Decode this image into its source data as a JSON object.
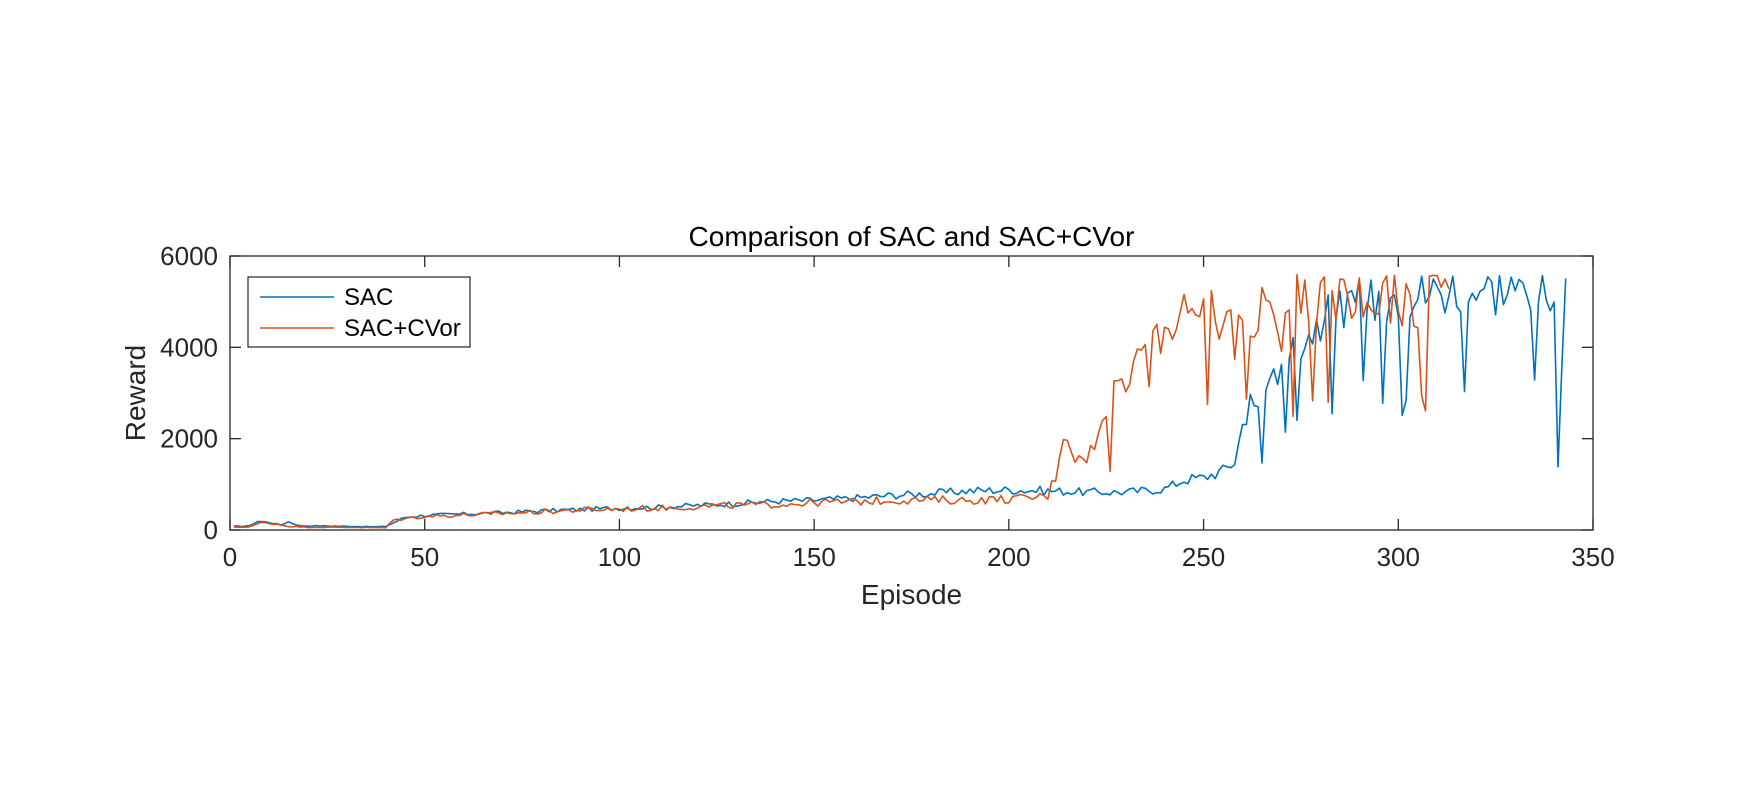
{
  "chart_data": {
    "type": "line",
    "title": "Comparison of SAC and SAC+CVor",
    "xlabel": "Episode",
    "ylabel": "Reward",
    "xlim": [
      0,
      350
    ],
    "ylim": [
      0,
      6000
    ],
    "xticks": [
      0,
      50,
      100,
      150,
      200,
      250,
      300,
      350
    ],
    "yticks": [
      0,
      2000,
      4000,
      6000
    ],
    "grid": false,
    "legend_position": "top-left",
    "series": [
      {
        "name": "SAC",
        "color": "#0072BD",
        "anchors": [
          [
            1,
            80
          ],
          [
            5,
            90
          ],
          [
            7,
            190
          ],
          [
            10,
            170
          ],
          [
            13,
            110
          ],
          [
            15,
            180
          ],
          [
            18,
            90
          ],
          [
            22,
            90
          ],
          [
            30,
            80
          ],
          [
            38,
            70
          ],
          [
            40,
            80
          ],
          [
            45,
            280
          ],
          [
            50,
            320
          ],
          [
            60,
            350
          ],
          [
            70,
            380
          ],
          [
            80,
            420
          ],
          [
            90,
            450
          ],
          [
            100,
            480
          ],
          [
            110,
            500
          ],
          [
            120,
            540
          ],
          [
            130,
            580
          ],
          [
            140,
            630
          ],
          [
            150,
            650
          ],
          [
            160,
            700
          ],
          [
            170,
            760
          ],
          [
            180,
            800
          ],
          [
            190,
            860
          ],
          [
            200,
            880
          ],
          [
            210,
            860
          ],
          [
            220,
            830
          ],
          [
            230,
            830
          ],
          [
            240,
            900
          ],
          [
            245,
            1100
          ],
          [
            250,
            1150
          ],
          [
            255,
            1300
          ],
          [
            258,
            1500
          ],
          [
            260,
            2300
          ],
          [
            262,
            2800
          ],
          [
            265,
            2600
          ],
          [
            268,
            3300
          ],
          [
            270,
            3800
          ],
          [
            275,
            4100
          ],
          [
            280,
            4600
          ],
          [
            285,
            4800
          ],
          [
            290,
            5000
          ],
          [
            295,
            5050
          ],
          [
            300,
            5200
          ],
          [
            305,
            5150
          ],
          [
            310,
            5250
          ],
          [
            315,
            5300
          ],
          [
            320,
            5300
          ],
          [
            325,
            5250
          ],
          [
            330,
            5400
          ],
          [
            335,
            5350
          ],
          [
            338,
            5400
          ],
          [
            340,
            4900
          ],
          [
            341,
            1300
          ],
          [
            342,
            4500
          ],
          [
            343,
            5550
          ]
        ],
        "noise": 0.11,
        "n": 343
      },
      {
        "name": "SAC+CVor",
        "color": "#D95319",
        "anchors": [
          [
            1,
            60
          ],
          [
            5,
            70
          ],
          [
            8,
            160
          ],
          [
            12,
            130
          ],
          [
            15,
            80
          ],
          [
            20,
            60
          ],
          [
            30,
            60
          ],
          [
            40,
            50
          ],
          [
            42,
            220
          ],
          [
            50,
            300
          ],
          [
            60,
            330
          ],
          [
            70,
            360
          ],
          [
            80,
            400
          ],
          [
            90,
            440
          ],
          [
            100,
            460
          ],
          [
            110,
            480
          ],
          [
            120,
            510
          ],
          [
            130,
            540
          ],
          [
            140,
            560
          ],
          [
            150,
            600
          ],
          [
            160,
            620
          ],
          [
            170,
            650
          ],
          [
            180,
            660
          ],
          [
            190,
            650
          ],
          [
            200,
            680
          ],
          [
            205,
            700
          ],
          [
            210,
            750
          ],
          [
            212,
            1200
          ],
          [
            214,
            2200
          ],
          [
            218,
            1500
          ],
          [
            222,
            1800
          ],
          [
            225,
            2500
          ],
          [
            228,
            3200
          ],
          [
            232,
            3700
          ],
          [
            235,
            4200
          ],
          [
            240,
            4500
          ],
          [
            245,
            4600
          ],
          [
            250,
            4700
          ],
          [
            255,
            4800
          ],
          [
            260,
            4850
          ],
          [
            265,
            4900
          ],
          [
            270,
            5000
          ],
          [
            275,
            5100
          ],
          [
            280,
            5150
          ],
          [
            285,
            5050
          ],
          [
            290,
            5100
          ],
          [
            295,
            5050
          ],
          [
            300,
            5000
          ],
          [
            305,
            5100
          ],
          [
            308,
            5250
          ],
          [
            313,
            5350
          ]
        ],
        "noise": 0.14,
        "n": 313
      }
    ]
  }
}
